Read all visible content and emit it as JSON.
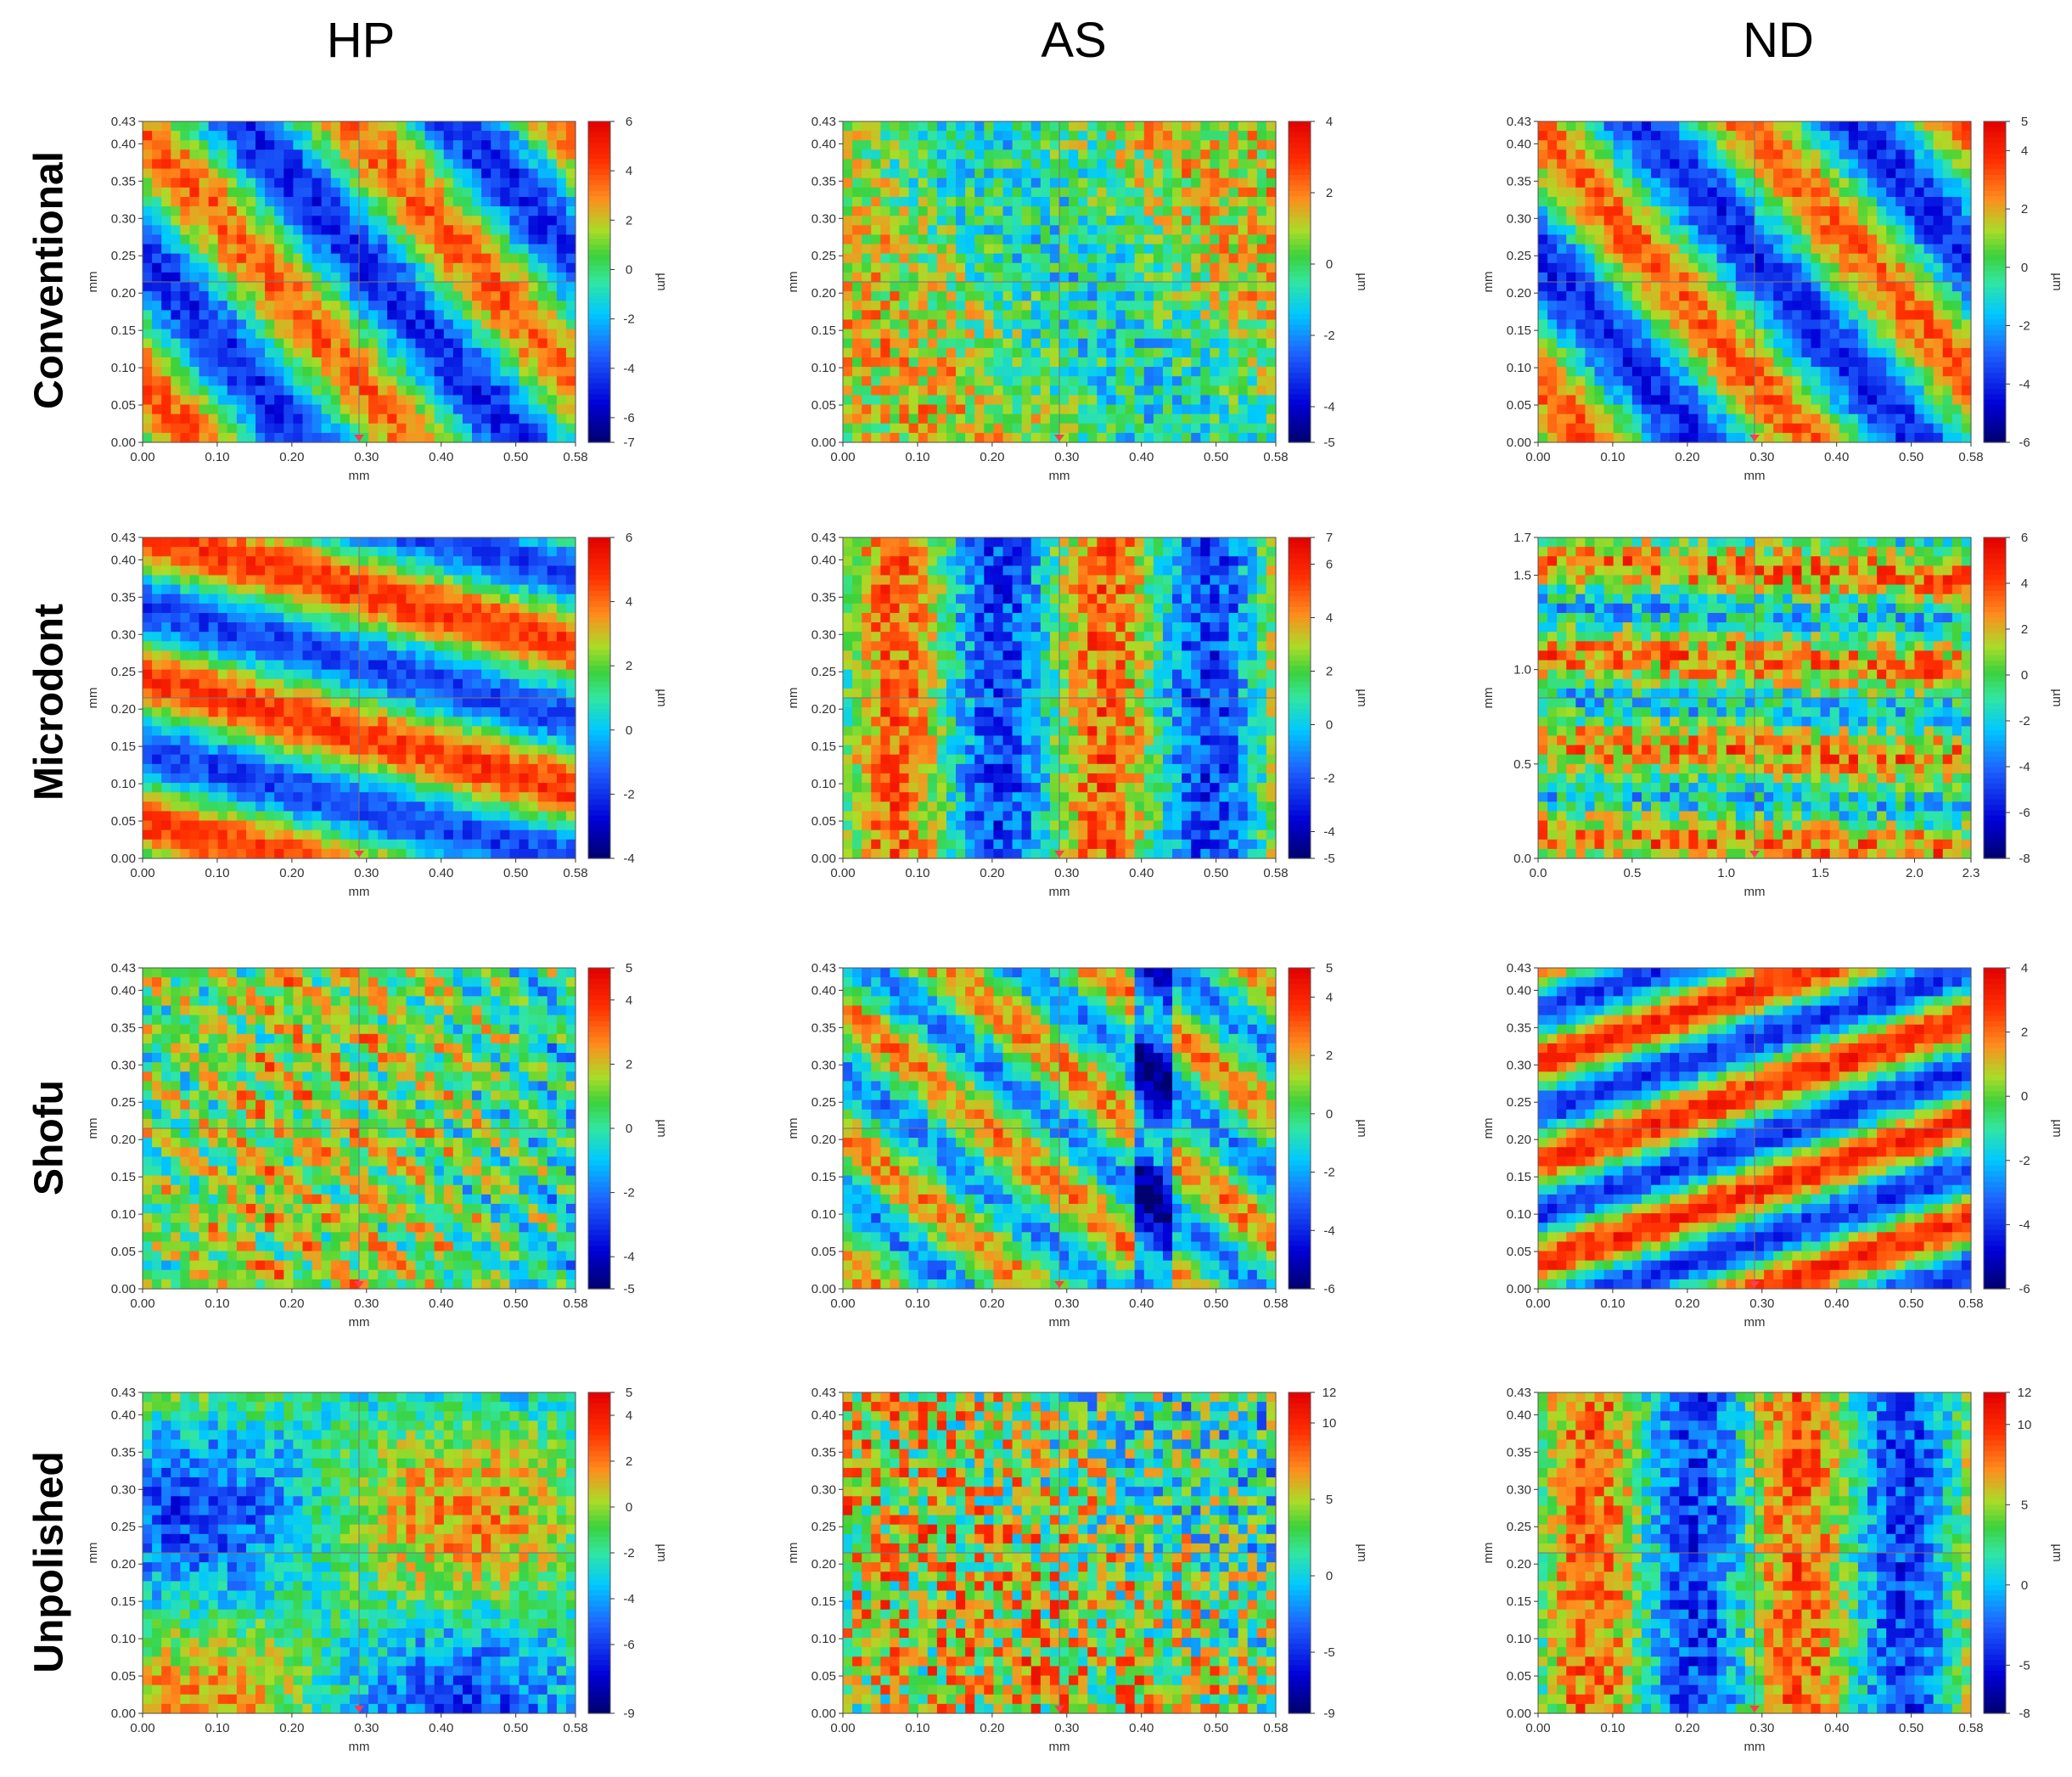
{
  "columns": [
    "HP",
    "AS",
    "ND"
  ],
  "rows": [
    "Conventional",
    "Microdont",
    "Shofu",
    "Unpolished"
  ],
  "colormap": [
    "#00006e",
    "#0000d8",
    "#1e64ff",
    "#00c8ff",
    "#2ee6a0",
    "#3cd23c",
    "#a8dc28",
    "#ff8c1e",
    "#ff2a00",
    "#e60000"
  ],
  "chart_data": [
    {
      "type": "heatmap",
      "row": "Conventional",
      "column": "HP",
      "xlabel": "mm",
      "ylabel": "mm",
      "zlabel": "µm",
      "xticks": [
        "0.00",
        "0.10",
        "0.20",
        "0.30",
        "0.40",
        "0.50",
        "0.58"
      ],
      "yticks": [
        "0.00",
        "0.05",
        "0.10",
        "0.15",
        "0.20",
        "0.25",
        "0.30",
        "0.35",
        "0.40",
        "0.43"
      ],
      "xlim": [
        0,
        0.58
      ],
      "ylim": [
        0,
        0.43
      ],
      "zticks": [
        "6",
        "4",
        "2",
        "0",
        "-2",
        "-4",
        "-6",
        "-7"
      ],
      "zlim": [
        -7,
        6
      ],
      "pattern": "diagonal-bands"
    },
    {
      "type": "heatmap",
      "row": "Conventional",
      "column": "AS",
      "xlabel": "mm",
      "ylabel": "mm",
      "zlabel": "µm",
      "xticks": [
        "0.00",
        "0.10",
        "0.20",
        "0.30",
        "0.40",
        "0.50",
        "0.58"
      ],
      "yticks": [
        "0.00",
        "0.05",
        "0.10",
        "0.15",
        "0.20",
        "0.25",
        "0.30",
        "0.35",
        "0.40",
        "0.43"
      ],
      "xlim": [
        0,
        0.58
      ],
      "ylim": [
        0,
        0.43
      ],
      "zticks": [
        "4",
        "2",
        "0",
        "-2",
        "-4",
        "-5"
      ],
      "zlim": [
        -5,
        4
      ],
      "pattern": "speckled"
    },
    {
      "type": "heatmap",
      "row": "Conventional",
      "column": "ND",
      "xlabel": "mm",
      "ylabel": "mm",
      "zlabel": "µm",
      "xticks": [
        "0.00",
        "0.10",
        "0.20",
        "0.30",
        "0.40",
        "0.50",
        "0.58"
      ],
      "yticks": [
        "0.00",
        "0.05",
        "0.10",
        "0.15",
        "0.20",
        "0.25",
        "0.30",
        "0.35",
        "0.40",
        "0.43"
      ],
      "xlim": [
        0,
        0.58
      ],
      "ylim": [
        0,
        0.43
      ],
      "zticks": [
        "5",
        "4",
        "2",
        "0",
        "-2",
        "-4",
        "-6"
      ],
      "zlim": [
        -6,
        5
      ],
      "pattern": "diagonal-bands"
    },
    {
      "type": "heatmap",
      "row": "Microdont",
      "column": "HP",
      "xlabel": "mm",
      "ylabel": "mm",
      "zlabel": "µm",
      "xticks": [
        "0.00",
        "0.10",
        "0.20",
        "0.30",
        "0.40",
        "0.50",
        "0.58"
      ],
      "yticks": [
        "0.00",
        "0.05",
        "0.10",
        "0.15",
        "0.20",
        "0.25",
        "0.30",
        "0.35",
        "0.40",
        "0.43"
      ],
      "xlim": [
        0,
        0.58
      ],
      "ylim": [
        0,
        0.43
      ],
      "zticks": [
        "6",
        "4",
        "2",
        "0",
        "-2",
        "-4"
      ],
      "zlim": [
        -4,
        6
      ],
      "pattern": "shallow-bands"
    },
    {
      "type": "heatmap",
      "row": "Microdont",
      "column": "AS",
      "xlabel": "mm",
      "ylabel": "mm",
      "zlabel": "µm",
      "xticks": [
        "0.00",
        "0.10",
        "0.20",
        "0.30",
        "0.40",
        "0.50",
        "0.58"
      ],
      "yticks": [
        "0.00",
        "0.05",
        "0.10",
        "0.15",
        "0.20",
        "0.25",
        "0.30",
        "0.35",
        "0.40",
        "0.43"
      ],
      "xlim": [
        0,
        0.58
      ],
      "ylim": [
        0,
        0.43
      ],
      "zticks": [
        "7",
        "6",
        "4",
        "2",
        "0",
        "-2",
        "-4",
        "-5"
      ],
      "zlim": [
        -5,
        7
      ],
      "pattern": "vertical-bands"
    },
    {
      "type": "heatmap",
      "row": "Microdont",
      "column": "ND",
      "xlabel": "mm",
      "ylabel": "mm",
      "zlabel": "µm",
      "xticks": [
        "0.0",
        "0.5",
        "1.0",
        "1.5",
        "2.0",
        "2.3"
      ],
      "yticks": [
        "0.0",
        "0.5",
        "1.0",
        "1.5",
        "1.7"
      ],
      "xlim": [
        0,
        2.3
      ],
      "ylim": [
        0,
        1.7
      ],
      "zticks": [
        "6",
        "4",
        "2",
        "0",
        "-2",
        "-4",
        "-6",
        "-8"
      ],
      "zlim": [
        -8,
        6
      ],
      "pattern": "horizontal-streaks"
    },
    {
      "type": "heatmap",
      "row": "Shofu",
      "column": "HP",
      "xlabel": "mm",
      "ylabel": "mm",
      "zlabel": "µm",
      "xticks": [
        "0.00",
        "0.10",
        "0.20",
        "0.30",
        "0.40",
        "0.50",
        "0.58"
      ],
      "yticks": [
        "0.00",
        "0.05",
        "0.10",
        "0.15",
        "0.20",
        "0.25",
        "0.30",
        "0.35",
        "0.40",
        "0.43"
      ],
      "xlim": [
        0,
        0.58
      ],
      "ylim": [
        0,
        0.43
      ],
      "zticks": [
        "5",
        "4",
        "2",
        "0",
        "-2",
        "-4",
        "-5"
      ],
      "zlim": [
        -5,
        5
      ],
      "pattern": "fine-diagonal"
    },
    {
      "type": "heatmap",
      "row": "Shofu",
      "column": "AS",
      "xlabel": "mm",
      "ylabel": "mm",
      "zlabel": "µm",
      "xticks": [
        "0.00",
        "0.10",
        "0.20",
        "0.30",
        "0.40",
        "0.50",
        "0.58"
      ],
      "yticks": [
        "0.00",
        "0.05",
        "0.10",
        "0.15",
        "0.20",
        "0.25",
        "0.30",
        "0.35",
        "0.40",
        "0.43"
      ],
      "xlim": [
        0,
        0.58
      ],
      "ylim": [
        0,
        0.43
      ],
      "zticks": [
        "5",
        "4",
        "2",
        "0",
        "-2",
        "-4",
        "-6"
      ],
      "zlim": [
        -6,
        5
      ],
      "pattern": "diagonal-with-vertical"
    },
    {
      "type": "heatmap",
      "row": "Shofu",
      "column": "ND",
      "xlabel": "mm",
      "ylabel": "mm",
      "zlabel": "µm",
      "xticks": [
        "0.00",
        "0.10",
        "0.20",
        "0.30",
        "0.40",
        "0.50",
        "0.58"
      ],
      "yticks": [
        "0.00",
        "0.05",
        "0.10",
        "0.15",
        "0.20",
        "0.25",
        "0.30",
        "0.35",
        "0.40",
        "0.43"
      ],
      "xlim": [
        0,
        0.58
      ],
      "ylim": [
        0,
        0.43
      ],
      "zticks": [
        "4",
        "2",
        "0",
        "-2",
        "-4",
        "-6"
      ],
      "zlim": [
        -6,
        4
      ],
      "pattern": "rising-bands"
    },
    {
      "type": "heatmap",
      "row": "Unpolished",
      "column": "HP",
      "xlabel": "mm",
      "ylabel": "mm",
      "zlabel": "µm",
      "xticks": [
        "0.00",
        "0.10",
        "0.20",
        "0.30",
        "0.40",
        "0.50",
        "0.58"
      ],
      "yticks": [
        "0.00",
        "0.05",
        "0.10",
        "0.15",
        "0.20",
        "0.25",
        "0.30",
        "0.35",
        "0.40",
        "0.43"
      ],
      "xlim": [
        0,
        0.58
      ],
      "ylim": [
        0,
        0.43
      ],
      "zticks": [
        "5",
        "4",
        "2",
        "0",
        "-2",
        "-4",
        "-6",
        "-9"
      ],
      "zlim": [
        -9,
        5
      ],
      "pattern": "blobs"
    },
    {
      "type": "heatmap",
      "row": "Unpolished",
      "column": "AS",
      "xlabel": "mm",
      "ylabel": "mm",
      "zlabel": "µm",
      "xticks": [
        "0.00",
        "0.10",
        "0.20",
        "0.30",
        "0.40",
        "0.50",
        "0.58"
      ],
      "yticks": [
        "0.00",
        "0.05",
        "0.10",
        "0.15",
        "0.20",
        "0.25",
        "0.30",
        "0.35",
        "0.40",
        "0.43"
      ],
      "xlim": [
        0,
        0.58
      ],
      "ylim": [
        0,
        0.43
      ],
      "zticks": [
        "12",
        "10",
        "5",
        "0",
        "-5",
        "-9"
      ],
      "zlim": [
        -9,
        12
      ],
      "pattern": "noisy"
    },
    {
      "type": "heatmap",
      "row": "Unpolished",
      "column": "ND",
      "xlabel": "mm",
      "ylabel": "mm",
      "zlabel": "µm",
      "xticks": [
        "0.00",
        "0.10",
        "0.20",
        "0.30",
        "0.40",
        "0.50",
        "0.58"
      ],
      "yticks": [
        "0.00",
        "0.05",
        "0.10",
        "0.15",
        "0.20",
        "0.25",
        "0.30",
        "0.35",
        "0.40",
        "0.43"
      ],
      "xlim": [
        0,
        0.58
      ],
      "ylim": [
        0,
        0.43
      ],
      "zticks": [
        "12",
        "10",
        "5",
        "0",
        "-5",
        "-8"
      ],
      "zlim": [
        -8,
        12
      ],
      "pattern": "vertical-bands"
    }
  ]
}
